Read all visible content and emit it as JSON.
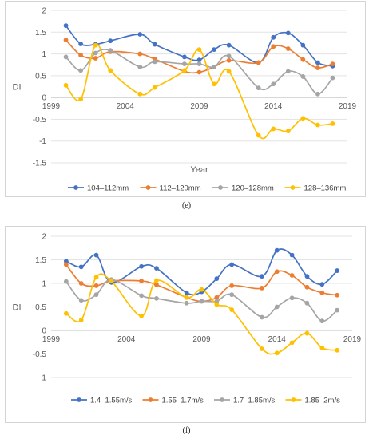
{
  "captions": [
    "(e)",
    "(f)"
  ],
  "chart_data": [
    {
      "type": "line",
      "title": "",
      "xlabel": "Year",
      "ylabel": "DI",
      "xlim": [
        1999,
        2019
      ],
      "ylim": [
        -1.5,
        2
      ],
      "xticks": [
        1999,
        2004,
        2009,
        2014,
        2019
      ],
      "yticks": [
        -1.5,
        -1,
        -0.5,
        0,
        0.5,
        1,
        1.5,
        2
      ],
      "grid": "horizontal",
      "legend_position": "bottom",
      "x": [
        2000,
        2001,
        2002,
        2003,
        2005,
        2006,
        2008,
        2009,
        2010,
        2011,
        2013,
        2014,
        2015,
        2016,
        2017,
        2018
      ],
      "series": [
        {
          "name": "104–112mm",
          "color": "#4472C4",
          "values": [
            1.65,
            1.23,
            1.22,
            1.3,
            1.45,
            1.22,
            0.93,
            0.86,
            1.1,
            1.2,
            0.8,
            1.38,
            1.48,
            1.2,
            0.8,
            0.72
          ]
        },
        {
          "name": "112–120mm",
          "color": "#ED7D31",
          "values": [
            1.32,
            0.97,
            0.9,
            1.05,
            1.0,
            0.88,
            0.6,
            0.58,
            0.7,
            0.85,
            0.8,
            1.17,
            1.12,
            0.87,
            0.68,
            0.77
          ]
        },
        {
          "name": "120–128mm",
          "color": "#A5A5A5",
          "values": [
            0.93,
            0.62,
            1.02,
            1.08,
            0.7,
            0.82,
            0.77,
            0.77,
            0.7,
            0.95,
            0.22,
            0.31,
            0.6,
            0.48,
            0.08,
            0.45
          ]
        },
        {
          "name": "128–136mm",
          "color": "#FFC000",
          "values": [
            0.28,
            -0.04,
            1.2,
            0.62,
            0.08,
            0.23,
            0.62,
            1.1,
            0.31,
            0.6,
            -0.87,
            -0.72,
            -0.77,
            -0.48,
            -0.63,
            -0.6
          ]
        }
      ]
    },
    {
      "type": "line",
      "title": "",
      "xlabel": "",
      "ylabel": "DI",
      "xlim": [
        1999,
        2019
      ],
      "ylim": [
        -1,
        2
      ],
      "xticks": [
        1999,
        2004,
        2009,
        2014,
        2019
      ],
      "yticks": [
        -1,
        -0.5,
        0,
        0.5,
        1,
        1.5,
        2
      ],
      "grid": "horizontal",
      "legend_position": "bottom",
      "x": [
        2000,
        2001,
        2002,
        2003,
        2005,
        2006,
        2008,
        2009,
        2010,
        2011,
        2013,
        2014,
        2015,
        2016,
        2017,
        2018
      ],
      "series": [
        {
          "name": "1.4–1.55m/s",
          "color": "#4472C4",
          "values": [
            1.47,
            1.35,
            1.6,
            1.02,
            1.36,
            1.32,
            0.8,
            0.82,
            1.1,
            1.4,
            1.15,
            1.7,
            1.6,
            1.15,
            0.98,
            1.27
          ]
        },
        {
          "name": "1.55–1.7m/s",
          "color": "#ED7D31",
          "values": [
            1.4,
            1.0,
            0.95,
            1.05,
            1.05,
            0.97,
            0.7,
            0.62,
            0.7,
            0.95,
            0.9,
            1.25,
            1.17,
            0.92,
            0.8,
            0.75
          ]
        },
        {
          "name": "1.7–1.85m/s",
          "color": "#A5A5A5",
          "values": [
            1.04,
            0.64,
            0.76,
            1.08,
            0.74,
            0.68,
            0.58,
            0.62,
            0.62,
            0.76,
            0.28,
            0.5,
            0.69,
            0.58,
            0.2,
            0.43
          ]
        },
        {
          "name": "1.85–2m/s",
          "color": "#FFC000",
          "values": [
            0.36,
            0.22,
            1.13,
            1.05,
            0.31,
            1.06,
            0.7,
            0.87,
            0.55,
            0.44,
            -0.39,
            -0.48,
            -0.26,
            -0.06,
            -0.37,
            -0.42
          ]
        }
      ]
    }
  ]
}
